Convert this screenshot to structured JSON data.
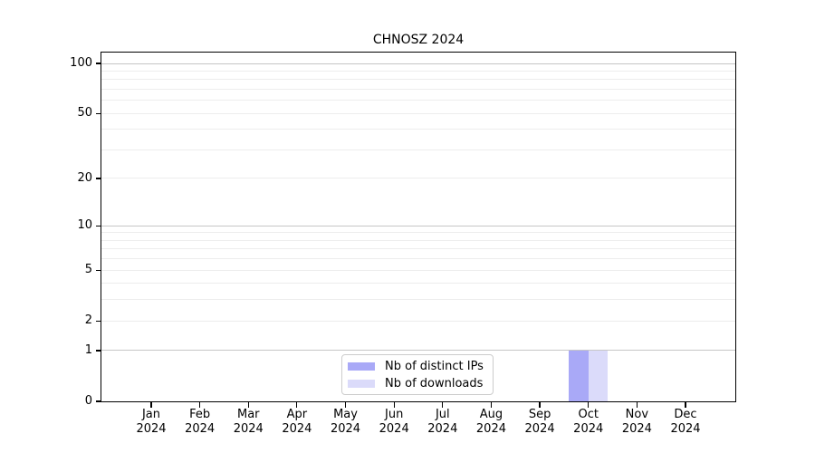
{
  "title": "CHNOSZ 2024",
  "colors": {
    "background": "#ffffff",
    "axis": "#000000",
    "grid_minor": "#ededed",
    "grid_major": "#c6c6c6",
    "legend_border": "#cccccc",
    "text": "#000000",
    "distinct_ips_bar": "#a9a9f7",
    "downloads_bar": "#dbdbfa"
  },
  "chart_data": {
    "type": "bar",
    "title": "CHNOSZ 2024",
    "categories": [
      "Jan\n2024",
      "Feb\n2024",
      "Mar\n2024",
      "Apr\n2024",
      "May\n2024",
      "Jun\n2024",
      "Jul\n2024",
      "Aug\n2024",
      "Sep\n2024",
      "Oct\n2024",
      "Nov\n2024",
      "Dec\n2024"
    ],
    "series": [
      {
        "name": "Nb of distinct IPs",
        "color": "#a9a9f7",
        "values": [
          0,
          0,
          0,
          0,
          0,
          0,
          0,
          0,
          0,
          1,
          0,
          0
        ]
      },
      {
        "name": "Nb of downloads",
        "color": "#dbdbfa",
        "values": [
          0,
          0,
          0,
          0,
          0,
          0,
          0,
          0,
          0,
          1,
          0,
          0
        ]
      }
    ],
    "xlabel": "",
    "ylabel": "",
    "y_axis": {
      "scale": "log1p",
      "tick_values": [
        0,
        1,
        2,
        5,
        10,
        20,
        50,
        100
      ],
      "major_grid_values": [
        1,
        10,
        100
      ],
      "minor_grid_values": [
        2,
        3,
        4,
        5,
        6,
        7,
        8,
        9,
        20,
        30,
        40,
        50,
        60,
        70,
        80,
        90
      ],
      "ylim": [
        0,
        116
      ]
    },
    "grid": "horizontal",
    "legend_position": "inside-bottom-center"
  }
}
